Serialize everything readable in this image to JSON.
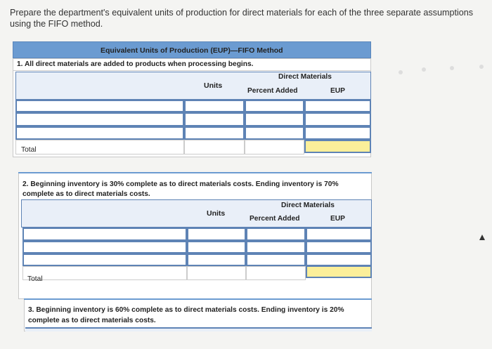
{
  "prompt": "Prepare the department's equivalent units of production for direct materials for each of the three separate assumptions using the FIFO method.",
  "table1": {
    "title": "Equivalent Units of Production (EUP)—FIFO Method",
    "case": "1. All direct materials are added to products when processing begins.",
    "col_units": "Units",
    "col_group": "Direct Materials",
    "col_percent": "Percent Added",
    "col_eup": "EUP",
    "total_label": "Total"
  },
  "table2": {
    "case_line1": "2. Beginning inventory is 30% complete as to direct materials costs. Ending inventory is 70%",
    "case_line2": "complete as to direct materials costs.",
    "col_units": "Units",
    "col_group": "Direct Materials",
    "col_percent": "Percent Added",
    "col_eup": "EUP",
    "total_label": "Total"
  },
  "table3": {
    "case_line1": "3. Beginning inventory is 60% complete as to direct materials costs. Ending inventory is 20%",
    "case_line2": "complete as to direct materials costs."
  },
  "colors": {
    "header_bar": "#6b9bd1",
    "highlight": "#fbef9a"
  }
}
